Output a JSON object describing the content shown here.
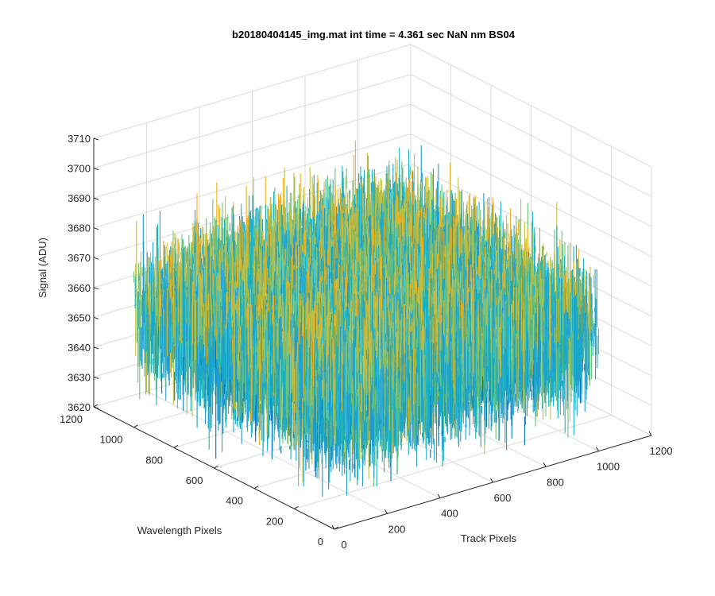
{
  "chart_data": {
    "type": "surface",
    "title": "b20180404145_img.mat int time = 4.361 sec  NaN nm BS04",
    "xlabel": "Track Pixels",
    "ylabel": "Wavelength Pixels",
    "zlabel": "Signal (ADU)",
    "xlim": [
      0,
      1200
    ],
    "ylim": [
      0,
      1200
    ],
    "zlim": [
      3620,
      3710
    ],
    "xticks": [
      0,
      200,
      400,
      600,
      800,
      1000,
      1200
    ],
    "yticks": [
      0,
      200,
      400,
      600,
      800,
      1000,
      1200
    ],
    "zticks": [
      3620,
      3630,
      3640,
      3650,
      3660,
      3670,
      3680,
      3690,
      3700,
      3710
    ],
    "grid": true,
    "colormap": [
      "#0072bd",
      "#1f9bd0",
      "#16b0c6",
      "#6cc17a",
      "#c2be3e",
      "#edb120"
    ],
    "surface": {
      "x_range": [
        0,
        1000
      ],
      "y_range": [
        0,
        1000
      ],
      "z_center": 3660,
      "z_min": 3623,
      "z_max": 3703
    }
  }
}
